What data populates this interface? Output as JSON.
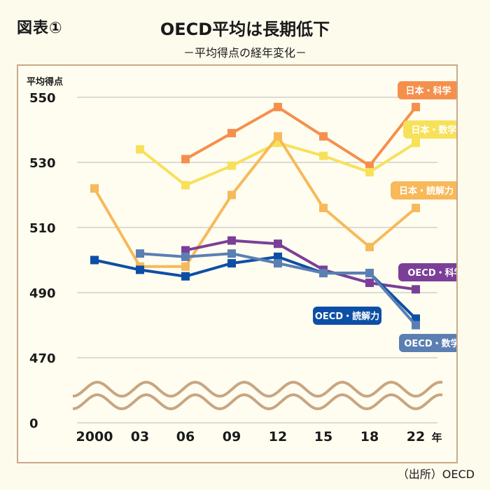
{
  "figure_label": "図表①",
  "title": "OECD平均は長期低下",
  "subtitle": "－平均得点の経年変化－",
  "source": "（出所）OECD",
  "chart_data": {
    "type": "line",
    "ylabel": "平均得点",
    "xlabel_suffix": "年",
    "categories": [
      "2000",
      "03",
      "06",
      "09",
      "12",
      "15",
      "18",
      "22"
    ],
    "y_ticks": [
      550,
      530,
      510,
      490,
      470,
      0
    ],
    "ylim_display": [
      470,
      550
    ],
    "axis_break": true,
    "grid": true,
    "series": [
      {
        "name": "日本・科学",
        "color": "#f58f4c",
        "values": [
          null,
          null,
          531,
          539,
          547,
          538,
          529,
          547
        ]
      },
      {
        "name": "日本・数学",
        "color": "#f7e15a",
        "values": [
          null,
          534,
          523,
          529,
          536,
          532,
          527,
          536
        ]
      },
      {
        "name": "日本・読解力",
        "color": "#f7b95a",
        "values": [
          522,
          498,
          498,
          520,
          538,
          516,
          504,
          516
        ]
      },
      {
        "name": "OECD・科学",
        "color": "#7b3f98",
        "values": [
          null,
          null,
          503,
          506,
          505,
          497,
          493,
          491
        ]
      },
      {
        "name": "OECD・読解力",
        "color": "#0d4fa6",
        "values": [
          500,
          497,
          495,
          499,
          501,
          496,
          496,
          482
        ]
      },
      {
        "name": "OECD・数学",
        "color": "#5b7fb3",
        "values": [
          null,
          502,
          501,
          502,
          499,
          496,
          496,
          480
        ]
      }
    ]
  }
}
